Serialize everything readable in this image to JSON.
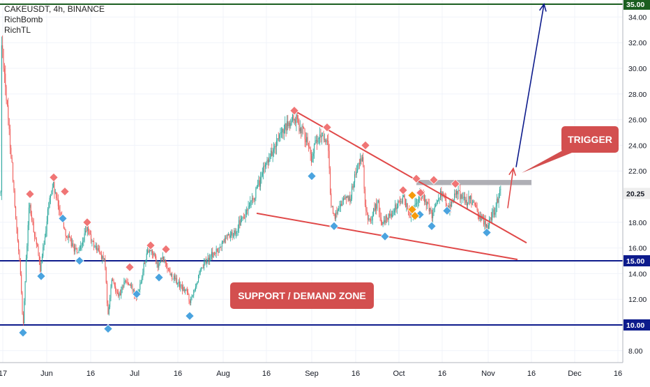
{
  "header": {
    "symbol_line": "CAKEUSDT, 4h, BINANCE",
    "indicators": [
      "RichBomb",
      "RichTL"
    ]
  },
  "chart_data": {
    "type": "candlestick",
    "symbol": "CAKEUSDT",
    "timeframe": "4h",
    "exchange": "BINANCE",
    "ylim": [
      7.4,
      35.0
    ],
    "y_ticks": [
      "8.00",
      "12.00",
      "14.00",
      "16.00",
      "18.00",
      "22.00",
      "24.00",
      "26.00",
      "28.00",
      "30.00",
      "32.00",
      "34.00"
    ],
    "x_ticks": [
      "17",
      "Jun",
      "16",
      "Jul",
      "16",
      "Aug",
      "16",
      "Sep",
      "16",
      "Oct",
      "16",
      "Nov",
      "16",
      "Dec",
      "16"
    ],
    "price_labels": [
      {
        "text": "35.00",
        "value": 35.0,
        "color": "#1b5e20"
      },
      {
        "text": "20.25",
        "value": 20.25,
        "color": "#eeeeee"
      },
      {
        "text": "15.00",
        "value": 15.0,
        "color": "#0d1b8c"
      },
      {
        "text": "10.00",
        "value": 10.0,
        "color": "#0d1b8c"
      }
    ],
    "horizontal_levels": [
      {
        "value": 35.0,
        "color": "#1b5e20"
      },
      {
        "value": 15.0,
        "color": "#0d1b8c"
      },
      {
        "value": 10.0,
        "color": "#0d1b8c"
      }
    ],
    "resistance_box": {
      "value_low": 20.9,
      "value_high": 21.3,
      "color": "#a6a6ad"
    },
    "trendlines": [
      {
        "from": [
          422,
          26.7
        ],
        "to": [
          755,
          16.4
        ],
        "color": "#e04848"
      },
      {
        "from": [
          368,
          18.7
        ],
        "to": [
          742,
          15.1
        ],
        "color": "#e04848"
      }
    ],
    "projections": [
      {
        "from": [
          740,
          22.3
        ],
        "to": [
          780,
          35.0
        ],
        "color": "#0d1b8c"
      },
      {
        "from": [
          728,
          19.1
        ],
        "to": [
          736,
          22.2
        ],
        "color": "#e04848"
      }
    ],
    "annotations": [
      {
        "text": "SUPPORT / DEMAND ZONE",
        "bg": "#d34f4f",
        "color": "#ffffff"
      },
      {
        "text": "TRIGGER",
        "bg": "#d34f4f",
        "color": "#ffffff"
      }
    ],
    "close_path": [
      [
        2,
        32.2
      ],
      [
        6,
        30.0
      ],
      [
        10,
        27.0
      ],
      [
        14,
        24.5
      ],
      [
        18,
        22.0
      ],
      [
        22,
        18.5
      ],
      [
        26,
        16.0
      ],
      [
        30,
        13.5
      ],
      [
        33,
        9.8
      ],
      [
        37,
        14.5
      ],
      [
        42,
        19.5
      ],
      [
        46,
        18.0
      ],
      [
        52,
        16.5
      ],
      [
        58,
        14.2
      ],
      [
        64,
        16.8
      ],
      [
        70,
        19.5
      ],
      [
        76,
        21.0
      ],
      [
        82,
        19.5
      ],
      [
        88,
        18.5
      ],
      [
        95,
        17.0
      ],
      [
        101,
        16.5
      ],
      [
        108,
        15.8
      ],
      [
        114,
        15.6
      ],
      [
        120,
        16.8
      ],
      [
        126,
        17.5
      ],
      [
        132,
        16.4
      ],
      [
        138,
        16.0
      ],
      [
        144,
        15.5
      ],
      [
        150,
        15.0
      ],
      [
        155,
        10.6
      ],
      [
        160,
        13.5
      ],
      [
        166,
        12.8
      ],
      [
        172,
        12.2
      ],
      [
        178,
        13.5
      ],
      [
        184,
        13.2
      ],
      [
        190,
        12.8
      ],
      [
        196,
        12.2
      ],
      [
        202,
        13.5
      ],
      [
        208,
        15.2
      ],
      [
        214,
        16.0
      ],
      [
        220,
        15.6
      ],
      [
        226,
        14.5
      ],
      [
        232,
        15.2
      ],
      [
        238,
        14.8
      ],
      [
        244,
        14.0
      ],
      [
        250,
        13.6
      ],
      [
        256,
        13.2
      ],
      [
        262,
        12.8
      ],
      [
        268,
        12.6
      ],
      [
        272,
        11.8
      ],
      [
        278,
        12.8
      ],
      [
        284,
        13.6
      ],
      [
        290,
        14.4
      ],
      [
        296,
        15.0
      ],
      [
        302,
        15.4
      ],
      [
        308,
        15.6
      ],
      [
        314,
        15.8
      ],
      [
        320,
        16.5
      ],
      [
        326,
        17.0
      ],
      [
        332,
        17.0
      ],
      [
        338,
        17.4
      ],
      [
        344,
        18.0
      ],
      [
        350,
        18.4
      ],
      [
        356,
        19.0
      ],
      [
        362,
        19.6
      ],
      [
        368,
        20.5
      ],
      [
        374,
        21.4
      ],
      [
        380,
        22.4
      ],
      [
        386,
        23.2
      ],
      [
        392,
        23.6
      ],
      [
        398,
        24.2
      ],
      [
        404,
        24.8
      ],
      [
        410,
        25.4
      ],
      [
        416,
        25.7
      ],
      [
        422,
        26.2
      ],
      [
        428,
        25.6
      ],
      [
        434,
        25.2
      ],
      [
        440,
        24.5
      ],
      [
        446,
        23.0
      ],
      [
        452,
        24.0
      ],
      [
        458,
        24.5
      ],
      [
        464,
        24.8
      ],
      [
        470,
        24.0
      ],
      [
        474,
        20.0
      ],
      [
        478,
        18.2
      ],
      [
        484,
        19.0
      ],
      [
        490,
        19.6
      ],
      [
        496,
        20.0
      ],
      [
        502,
        19.8
      ],
      [
        508,
        21.5
      ],
      [
        514,
        22.5
      ],
      [
        520,
        22.8
      ],
      [
        524,
        19.0
      ],
      [
        530,
        18.0
      ],
      [
        536,
        19.0
      ],
      [
        542,
        19.6
      ],
      [
        548,
        17.6
      ],
      [
        554,
        18.4
      ],
      [
        560,
        18.6
      ],
      [
        566,
        19.0
      ],
      [
        572,
        19.6
      ],
      [
        578,
        20.0
      ],
      [
        584,
        19.0
      ],
      [
        590,
        18.6
      ],
      [
        596,
        19.6
      ],
      [
        602,
        20.2
      ],
      [
        608,
        19.8
      ],
      [
        614,
        19.2
      ],
      [
        620,
        18.4
      ],
      [
        626,
        19.8
      ],
      [
        632,
        20.4
      ],
      [
        638,
        19.6
      ],
      [
        644,
        19.2
      ],
      [
        650,
        19.8
      ],
      [
        656,
        20.4
      ],
      [
        662,
        20.0
      ],
      [
        668,
        19.6
      ],
      [
        674,
        19.8
      ],
      [
        680,
        19.2
      ],
      [
        686,
        18.6
      ],
      [
        692,
        18.2
      ],
      [
        698,
        17.6
      ],
      [
        704,
        18.4
      ],
      [
        710,
        19.0
      ],
      [
        716,
        20.2
      ],
      [
        719,
        20.25
      ]
    ],
    "markers_top": [
      [
        43,
        20.2
      ],
      [
        77,
        21.5
      ],
      [
        93,
        20.4
      ],
      [
        125,
        18.0
      ],
      [
        186,
        14.5
      ],
      [
        216,
        16.2
      ],
      [
        238,
        15.9
      ],
      [
        422,
        26.7
      ],
      [
        469,
        25.4
      ],
      [
        524,
        24.0
      ],
      [
        578,
        20.5
      ],
      [
        597,
        21.4
      ],
      [
        603,
        20.3
      ],
      [
        622,
        21.3
      ],
      [
        653,
        21.0
      ]
    ],
    "markers_bottom": [
      [
        33,
        9.4
      ],
      [
        59,
        13.8
      ],
      [
        90,
        18.3
      ],
      [
        114,
        15.0
      ],
      [
        155,
        9.7
      ],
      [
        196,
        12.4
      ],
      [
        228,
        13.7
      ],
      [
        272,
        10.7
      ],
      [
        447,
        21.6
      ],
      [
        479,
        17.7
      ],
      [
        552,
        16.9
      ],
      [
        602,
        18.6
      ],
      [
        619,
        17.7
      ],
      [
        641,
        18.9
      ],
      [
        698,
        17.2
      ]
    ],
    "markers_mid": [
      [
        591,
        20.1
      ],
      [
        591,
        19.0
      ],
      [
        595,
        18.5
      ]
    ]
  }
}
